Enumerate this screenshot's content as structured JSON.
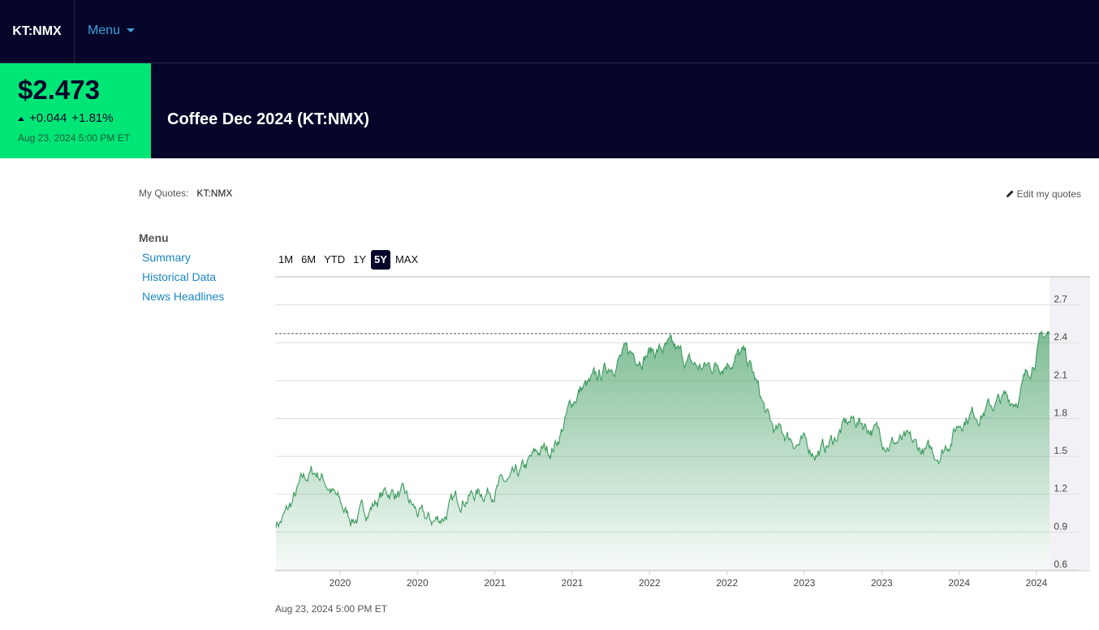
{
  "header": {
    "brand": "KT:NMX",
    "menu_label": "Menu"
  },
  "quote": {
    "price": "$2.473",
    "change": "+0.044",
    "change_pct": "+1.81%",
    "timestamp": "Aug 23, 2024 5:00 PM ET",
    "title": "Coffee Dec 2024 (KT:NMX)"
  },
  "my_quotes": {
    "label": "My Quotes:",
    "ticker": "KT:NMX",
    "edit_label": "Edit my quotes"
  },
  "side_menu": {
    "title": "Menu",
    "items": [
      {
        "label": "Summary"
      },
      {
        "label": "Historical Data"
      },
      {
        "label": "News Headlines"
      }
    ]
  },
  "ranges": [
    {
      "label": "1M",
      "active": false
    },
    {
      "label": "6M",
      "active": false
    },
    {
      "label": "YTD",
      "active": false
    },
    {
      "label": "1Y",
      "active": false
    },
    {
      "label": "5Y",
      "active": true
    },
    {
      "label": "MAX",
      "active": false
    }
  ],
  "chart_footer": "Aug 23, 2024 5:00 PM ET",
  "colors": {
    "accent_green": "#00e676",
    "navy": "#06062a",
    "link_blue": "#1a86c4",
    "line_green": "#3a9a5c"
  },
  "chart_data": {
    "type": "area",
    "x": [
      "2019-09",
      "2019-12",
      "2020-03",
      "2020-06",
      "2020-09",
      "2020-12",
      "2021-03",
      "2021-06",
      "2021-09",
      "2021-12",
      "2022-03",
      "2022-06",
      "2022-09",
      "2022-12",
      "2023-03",
      "2023-06",
      "2023-09",
      "2023-12",
      "2024-03",
      "2024-06",
      "2024-08"
    ],
    "values": [
      0.98,
      1.37,
      1.02,
      1.22,
      0.98,
      1.2,
      1.28,
      1.55,
      2.05,
      2.3,
      2.35,
      2.2,
      2.3,
      1.68,
      1.55,
      1.78,
      1.62,
      1.52,
      1.85,
      1.95,
      2.47
    ],
    "last_value": 2.473,
    "x_tick_labels": [
      "2020",
      "2020",
      "2021",
      "2021",
      "2022",
      "2022",
      "2023",
      "2023",
      "2024",
      "2024"
    ],
    "y_ticks": [
      0.6,
      0.9,
      1.2,
      1.5,
      1.8,
      2.1,
      2.4,
      2.7
    ],
    "ylim": [
      0.6,
      2.8
    ],
    "grid": true,
    "y_axis_side": "right"
  }
}
